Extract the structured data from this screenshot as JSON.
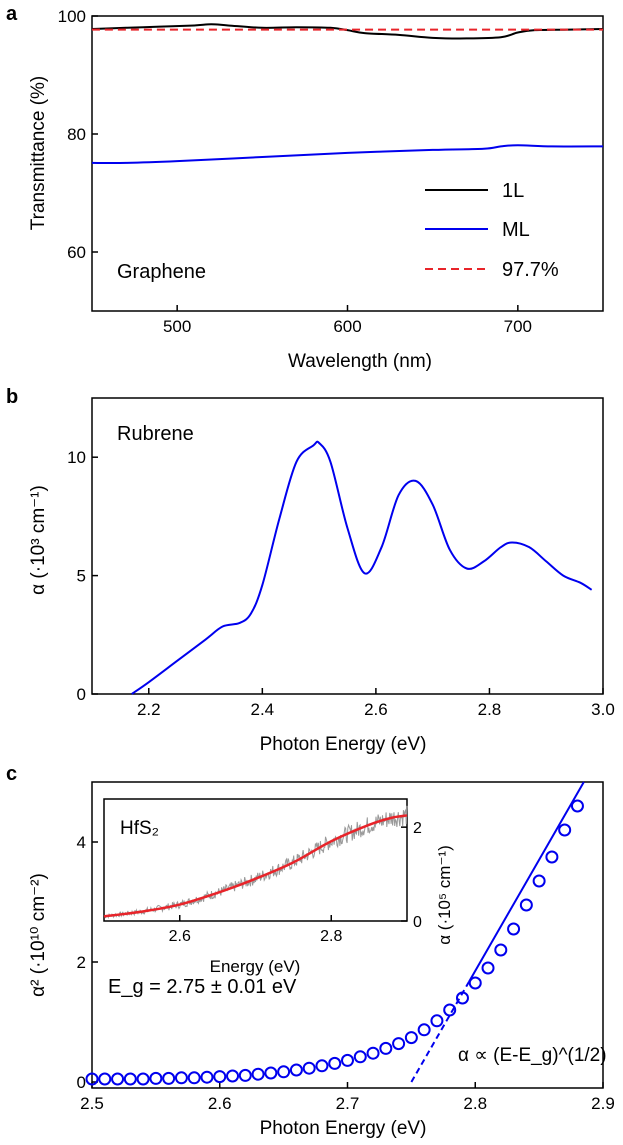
{
  "panels": [
    {
      "label": "a",
      "chart_data": {
        "type": "line",
        "annotation": "Graphene",
        "xlabel": "Wavelength (nm)",
        "ylabel": "Transmittance (%)",
        "xlim": [
          450,
          750
        ],
        "ylim": [
          50,
          100
        ],
        "xticks": [
          500,
          600,
          700
        ],
        "yticks": [
          60,
          80,
          100
        ],
        "legend_position": "bottom-right",
        "series": [
          {
            "name": "1L",
            "color": "#000000",
            "style": "solid",
            "x": [
              450,
              470,
              490,
              510,
              520,
              530,
              550,
              570,
              590,
              600,
              610,
              630,
              650,
              670,
              690,
              700,
              710,
              730,
              750
            ],
            "y": [
              97.8,
              98.0,
              98.2,
              98.4,
              98.6,
              98.4,
              98.0,
              98.1,
              98.0,
              97.6,
              97.1,
              96.8,
              96.3,
              96.2,
              96.4,
              97.2,
              97.6,
              97.7,
              97.8
            ]
          },
          {
            "name": "ML",
            "color": "#0000ee",
            "style": "solid",
            "x": [
              450,
              470,
              500,
              550,
              600,
              650,
              680,
              690,
              700,
              720,
              750
            ],
            "y": [
              75.1,
              75.1,
              75.4,
              76.1,
              76.8,
              77.3,
              77.5,
              77.9,
              78.1,
              77.9,
              77.9
            ]
          },
          {
            "name": "97.7%",
            "color": "#e8242a",
            "style": "dashed",
            "x": [
              450,
              750
            ],
            "y": [
              97.7,
              97.7
            ]
          }
        ]
      }
    },
    {
      "label": "b",
      "chart_data": {
        "type": "line",
        "annotation": "Rubrene",
        "xlabel": "Photon Energy (eV)",
        "ylabel": "α (·10³ cm⁻¹)",
        "xlim": [
          2.1,
          3.0
        ],
        "ylim": [
          0,
          12.5
        ],
        "xticks": [
          "2.2",
          "2.4",
          "2.6",
          "2.8",
          "3.0"
        ],
        "yticks": [
          0,
          5,
          10
        ],
        "series": [
          {
            "name": "",
            "color": "#0000ee",
            "style": "solid",
            "x": [
              2.17,
              2.2,
              2.25,
              2.3,
              2.33,
              2.36,
              2.38,
              2.4,
              2.43,
              2.46,
              2.49,
              2.5,
              2.52,
              2.55,
              2.58,
              2.61,
              2.64,
              2.67,
              2.7,
              2.73,
              2.76,
              2.79,
              2.82,
              2.84,
              2.87,
              2.9,
              2.93,
              2.96,
              2.98
            ],
            "y": [
              0,
              0.5,
              1.4,
              2.3,
              2.85,
              3.0,
              3.4,
              4.6,
              7.4,
              9.8,
              10.5,
              10.6,
              9.8,
              7.0,
              5.1,
              6.2,
              8.4,
              9.0,
              8.0,
              6.1,
              5.3,
              5.6,
              6.2,
              6.4,
              6.2,
              5.6,
              5.0,
              4.7,
              4.4
            ]
          }
        ]
      }
    },
    {
      "label": "c",
      "chart_data": {
        "type": "scatter",
        "annotation": "E_g = 2.75 ± 0.01 eV",
        "fit_annotation": "α ∝ (E-E_g)^(1/2)",
        "xlabel": "Photon Energy (eV)",
        "ylabel": "α² (·10¹⁰ cm⁻²)",
        "xlim": [
          2.5,
          2.9
        ],
        "ylim": [
          -0.1,
          5.0
        ],
        "xticks": [
          "2.5",
          "2.6",
          "2.7",
          "2.8",
          "2.9"
        ],
        "yticks": [
          0,
          2,
          4
        ],
        "series": [
          {
            "name": "",
            "color": "#0000ee",
            "marker": "open-circle",
            "x": [
              2.5,
              2.51,
              2.52,
              2.53,
              2.54,
              2.55,
              2.56,
              2.57,
              2.58,
              2.59,
              2.6,
              2.61,
              2.62,
              2.63,
              2.64,
              2.65,
              2.66,
              2.67,
              2.68,
              2.69,
              2.7,
              2.71,
              2.72,
              2.73,
              2.74,
              2.75,
              2.76,
              2.77,
              2.78,
              2.79,
              2.8,
              2.81,
              2.82,
              2.83,
              2.84,
              2.85,
              2.86,
              2.87,
              2.88
            ],
            "y": [
              0.05,
              0.05,
              0.05,
              0.05,
              0.05,
              0.06,
              0.06,
              0.07,
              0.07,
              0.08,
              0.09,
              0.1,
              0.11,
              0.13,
              0.15,
              0.17,
              0.2,
              0.23,
              0.27,
              0.31,
              0.36,
              0.42,
              0.48,
              0.56,
              0.64,
              0.74,
              0.87,
              1.02,
              1.2,
              1.4,
              1.65,
              1.9,
              2.2,
              2.55,
              2.95,
              3.35,
              3.75,
              4.2,
              4.6
            ]
          }
        ],
        "fit_line": {
          "x": [
            2.75,
            2.885
          ],
          "y": [
            0,
            5.0
          ],
          "dashed_until_x": 2.795
        },
        "inset": {
          "annotation": "HfS₂",
          "xlabel": "Energy (eV)",
          "ylabel": "α (·10⁵ cm⁻¹)",
          "xlim": [
            2.5,
            2.9
          ],
          "ylim": [
            0,
            2.6
          ],
          "xticks": [
            "2.6",
            "2.8"
          ],
          "yticks": [
            0,
            2
          ],
          "fit_color": "#e8242a",
          "data_color": "#999999",
          "fit": {
            "x": [
              2.5,
              2.55,
              2.6,
              2.65,
              2.7,
              2.75,
              2.8,
              2.85,
              2.88,
              2.9
            ],
            "y": [
              0.1,
              0.2,
              0.35,
              0.6,
              0.9,
              1.25,
              1.7,
              2.05,
              2.2,
              2.25
            ]
          }
        }
      }
    }
  ]
}
